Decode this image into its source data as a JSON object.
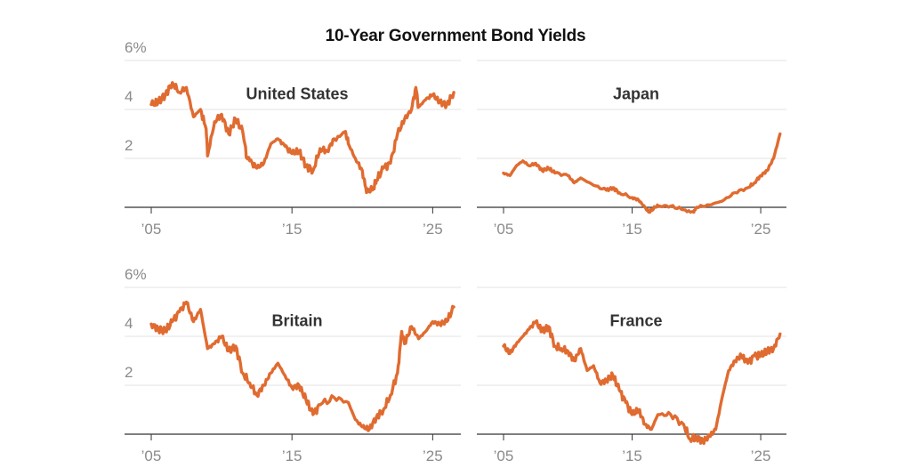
{
  "title": "10-Year Government Bond Yields",
  "colors": {
    "line": "#e06b30",
    "grid": "#e3e3e3",
    "axis": "#333333",
    "tick_text": "#8a8a8a"
  },
  "chart_data": [
    {
      "type": "line",
      "title": "United States",
      "ylim": [
        0,
        6
      ],
      "xlim": [
        2005,
        2027
      ],
      "y_ticks": [
        "6%",
        "4",
        "2"
      ],
      "x_ticks": [
        "’05",
        "’15",
        "’25"
      ],
      "x": [
        2005,
        2005.5,
        2006,
        2006.5,
        2007,
        2007.5,
        2008,
        2008.5,
        2008.9,
        2009,
        2009.5,
        2010,
        2010.5,
        2011,
        2011.5,
        2011.8,
        2012,
        2012.5,
        2013,
        2013.5,
        2014,
        2014.5,
        2015,
        2015.5,
        2016,
        2016.5,
        2017,
        2017.5,
        2018,
        2018.8,
        2019,
        2019.5,
        2020,
        2020.3,
        2020.8,
        2021,
        2021.5,
        2022,
        2022.5,
        2023,
        2023.5,
        2023.8,
        2024,
        2024.5,
        2025,
        2025.5,
        2026,
        2026.5
      ],
      "y": [
        4.2,
        4.3,
        4.6,
        5.1,
        4.7,
        4.9,
        3.7,
        4.0,
        3.2,
        2.1,
        3.5,
        3.8,
        3.0,
        3.6,
        3.1,
        2.0,
        1.9,
        1.6,
        1.8,
        2.6,
        2.8,
        2.5,
        2.2,
        2.3,
        1.7,
        1.5,
        2.4,
        2.3,
        2.8,
        3.1,
        2.6,
        2.0,
        1.5,
        0.6,
        0.8,
        1.1,
        1.6,
        1.8,
        3.0,
        3.6,
        4.0,
        4.9,
        4.1,
        4.4,
        4.6,
        4.3,
        4.2,
        4.7
      ]
    },
    {
      "type": "line",
      "title": "Japan",
      "ylim": [
        0,
        6
      ],
      "xlim": [
        2005,
        2027
      ],
      "x_ticks": [
        "’05",
        "’15",
        "’25"
      ],
      "x": [
        2005,
        2005.5,
        2006,
        2006.5,
        2007,
        2007.5,
        2008,
        2008.5,
        2009,
        2010,
        2010.5,
        2011,
        2012,
        2013,
        2013.5,
        2014,
        2015,
        2015.5,
        2016,
        2016.3,
        2016.8,
        2017,
        2018,
        2019,
        2019.8,
        2020,
        2021,
        2022,
        2023,
        2024,
        2024.5,
        2025,
        2025.5,
        2026,
        2026.5
      ],
      "y": [
        1.4,
        1.3,
        1.7,
        1.9,
        1.7,
        1.8,
        1.5,
        1.6,
        1.4,
        1.3,
        1.0,
        1.2,
        0.9,
        0.7,
        0.8,
        0.6,
        0.4,
        0.3,
        0.0,
        -0.2,
        0.0,
        0.05,
        0.05,
        -0.1,
        -0.2,
        0.0,
        0.1,
        0.25,
        0.6,
        0.8,
        1.0,
        1.3,
        1.5,
        2.0,
        3.0
      ]
    },
    {
      "type": "line",
      "title": "Britain",
      "ylim": [
        0,
        6
      ],
      "xlim": [
        2005,
        2027
      ],
      "y_ticks": [
        "6%",
        "4",
        "2"
      ],
      "x_ticks": [
        "’05",
        "’15",
        "’25"
      ],
      "x": [
        2005,
        2005.5,
        2006,
        2006.5,
        2007,
        2007.5,
        2008,
        2008.5,
        2009,
        2009.5,
        2010,
        2010.5,
        2011,
        2011.5,
        2012,
        2012.5,
        2013,
        2013.5,
        2014,
        2014.5,
        2015,
        2015.5,
        2016,
        2016.5,
        2017,
        2018,
        2019,
        2019.5,
        2020,
        2020.5,
        2021,
        2021.5,
        2022,
        2022.5,
        2022.8,
        2023,
        2023.5,
        2024,
        2024.5,
        2025,
        2025.5,
        2026,
        2026.5
      ],
      "y": [
        4.5,
        4.3,
        4.2,
        4.6,
        5.0,
        5.4,
        4.6,
        5.1,
        3.5,
        3.7,
        4.0,
        3.4,
        3.6,
        2.5,
        2.1,
        1.6,
        2.0,
        2.5,
        2.9,
        2.4,
        1.9,
        2.0,
        1.4,
        0.8,
        1.2,
        1.5,
        1.3,
        0.6,
        0.3,
        0.2,
        0.7,
        1.0,
        1.6,
        2.5,
        4.2,
        3.7,
        4.4,
        3.9,
        4.2,
        4.6,
        4.5,
        4.6,
        5.2
      ]
    },
    {
      "type": "line",
      "title": "France",
      "ylim": [
        0,
        6
      ],
      "xlim": [
        2005,
        2027
      ],
      "x_ticks": [
        "’05",
        "’15",
        "’25"
      ],
      "x": [
        2005,
        2005.5,
        2006,
        2006.5,
        2007,
        2007.5,
        2008,
        2008.5,
        2009,
        2009.5,
        2010,
        2010.5,
        2011,
        2011.5,
        2012,
        2012.5,
        2013,
        2013.5,
        2014,
        2014.5,
        2015,
        2015.5,
        2016,
        2016.5,
        2017,
        2018,
        2019,
        2019.5,
        2020,
        2020.5,
        2021,
        2021.5,
        2022,
        2022.5,
        2023,
        2023.5,
        2024,
        2024.5,
        2025,
        2025.5,
        2026,
        2026.5
      ],
      "y": [
        3.6,
        3.3,
        3.7,
        4.0,
        4.3,
        4.6,
        4.2,
        4.4,
        3.6,
        3.5,
        3.4,
        3.0,
        3.5,
        2.6,
        2.8,
        2.1,
        2.2,
        2.4,
        1.8,
        1.3,
        0.8,
        1.0,
        0.4,
        0.2,
        0.8,
        0.8,
        0.4,
        -0.2,
        -0.1,
        -0.3,
        -0.1,
        0.2,
        1.5,
        2.6,
        3.0,
        3.2,
        2.9,
        3.2,
        3.2,
        3.4,
        3.5,
        4.1
      ]
    }
  ]
}
